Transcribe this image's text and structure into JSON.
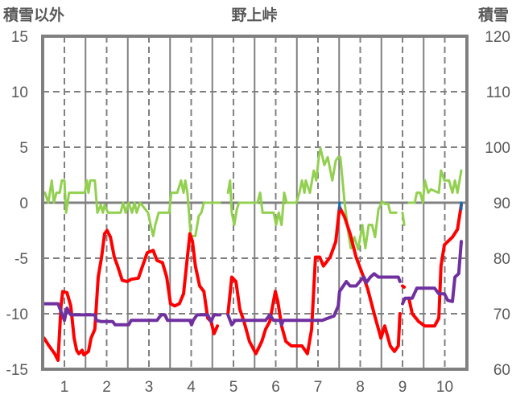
{
  "chart_data": {
    "type": "line",
    "title": "野上峠",
    "ylabel_left": "積雪以外",
    "ylabel_right": "積雪",
    "ylim_left": [
      -15,
      15
    ],
    "ylim_right": [
      60,
      120
    ],
    "xlim": [
      0.49,
      10.52
    ],
    "left_ticks": [
      "15",
      "10",
      "5",
      "0",
      "-5",
      "-10",
      "-15"
    ],
    "left_tick_values": [
      15,
      10,
      5,
      0,
      -5,
      -10,
      -15
    ],
    "right_ticks": [
      "120",
      "110",
      "100",
      "90",
      "80",
      "70",
      "60"
    ],
    "right_tick_values": [
      120,
      110,
      100,
      90,
      80,
      70,
      60
    ],
    "x_ticks": [
      "1",
      "2",
      "3",
      "4",
      "5",
      "6",
      "7",
      "8",
      "9",
      "10"
    ],
    "x_tick_values": [
      1,
      2,
      3,
      4,
      5,
      6,
      7,
      8,
      9,
      10
    ],
    "grid": true,
    "colors": {
      "red": "#ff0000",
      "green": "#92d050",
      "purple": "#7030a0",
      "blue": "#0070c0",
      "grid": "#808080",
      "text": "#595959"
    },
    "series": [
      {
        "name": "green",
        "axis": "left",
        "color": "#92d050",
        "width": 3,
        "points": [
          [
            0.54,
            0.9
          ],
          [
            0.62,
            0
          ],
          [
            0.7,
            2.0
          ],
          [
            0.75,
            0
          ],
          [
            0.81,
            0.9
          ],
          [
            0.89,
            0.9
          ],
          [
            0.94,
            2.0
          ],
          [
            1.0,
            2.0
          ],
          [
            1.04,
            -0.9
          ],
          [
            1.11,
            0.9
          ],
          [
            1.48,
            0.9
          ],
          [
            1.53,
            2.0
          ],
          [
            1.57,
            0.9
          ],
          [
            1.61,
            2.0
          ],
          [
            1.72,
            2.0
          ],
          [
            1.78,
            -0.9
          ],
          [
            1.86,
            -0.2
          ],
          [
            1.91,
            -0.9
          ],
          [
            1.95,
            -0.2
          ],
          [
            2.03,
            -0.9
          ],
          [
            2.33,
            -0.9
          ],
          [
            2.39,
            0
          ],
          [
            2.45,
            -0.9
          ],
          [
            2.52,
            0
          ],
          [
            2.6,
            -0.9
          ],
          [
            2.66,
            0
          ],
          [
            2.71,
            -0.9
          ],
          [
            2.79,
            0
          ],
          [
            2.98,
            -0.9
          ],
          [
            3.04,
            -2.0
          ],
          [
            3.1,
            -3.0
          ],
          [
            3.15,
            -2.0
          ],
          [
            3.23,
            -0.9
          ],
          [
            3.48,
            -0.9
          ],
          [
            3.53,
            0.9
          ],
          [
            3.67,
            0.9
          ],
          [
            3.76,
            2.0
          ],
          [
            3.82,
            0.9
          ],
          [
            3.86,
            2.0
          ],
          [
            3.91,
            0.9
          ],
          [
            3.99,
            -3.0
          ],
          [
            4.1,
            -3.0
          ],
          [
            4.18,
            -1.2
          ],
          [
            4.24,
            -0.9
          ],
          [
            4.3,
            0
          ],
          [
            4.68,
            0
          ],
          null,
          [
            4.87,
            0.9
          ],
          [
            4.92,
            2.0
          ],
          [
            4.96,
            -0.9
          ],
          [
            5.02,
            -2.0
          ],
          [
            5.08,
            -0.6
          ],
          [
            5.13,
            0
          ],
          [
            5.57,
            0
          ],
          [
            5.63,
            0.9
          ],
          [
            5.69,
            -0.9
          ],
          [
            5.95,
            -0.9
          ],
          [
            6.01,
            -2.0
          ],
          [
            6.07,
            -0.9
          ],
          [
            6.14,
            -2.0
          ],
          [
            6.2,
            0.9
          ],
          [
            6.26,
            0
          ],
          [
            6.49,
            0
          ],
          [
            6.56,
            0.9
          ],
          [
            6.62,
            2.0
          ],
          [
            6.68,
            0.9
          ],
          [
            6.71,
            2.0
          ],
          [
            6.81,
            0.9
          ],
          [
            6.9,
            2.9
          ],
          [
            6.96,
            2.0
          ],
          [
            7.02,
            4.1
          ],
          [
            7.06,
            4.9
          ],
          [
            7.15,
            3.4
          ],
          [
            7.23,
            4.1
          ],
          [
            7.34,
            2.0
          ],
          [
            7.42,
            3.8
          ],
          [
            7.48,
            4.1
          ],
          [
            7.53,
            4.1
          ],
          [
            7.63,
            0
          ],
          [
            7.72,
            -2.8
          ],
          [
            7.78,
            -4.1
          ],
          [
            7.86,
            -3.1
          ],
          [
            7.95,
            -4.2
          ],
          [
            8.05,
            -2.0
          ],
          [
            8.12,
            -4.1
          ],
          [
            8.2,
            -2.0
          ],
          [
            8.28,
            -2.0
          ],
          [
            8.35,
            -3.1
          ],
          [
            8.43,
            -0.6
          ],
          [
            8.52,
            0.1
          ],
          [
            8.58,
            -0.1
          ],
          [
            8.66,
            -0.1
          ],
          [
            8.71,
            -0.9
          ],
          [
            8.85,
            -0.9
          ],
          null,
          [
            9.0,
            -0.9
          ],
          [
            9.04,
            -2.0
          ],
          null,
          [
            9.15,
            0
          ],
          [
            9.29,
            0
          ],
          [
            9.34,
            0.9
          ],
          [
            9.42,
            0.9
          ],
          [
            9.48,
            0
          ],
          [
            9.53,
            2.0
          ],
          [
            9.61,
            0.9
          ],
          [
            9.67,
            1.2
          ],
          [
            9.86,
            0.9
          ],
          [
            9.91,
            2.9
          ],
          [
            9.99,
            2.0
          ],
          [
            10.1,
            2.0
          ],
          [
            10.18,
            0.9
          ],
          [
            10.24,
            2.0
          ],
          [
            10.3,
            0.9
          ],
          [
            10.39,
            2.9
          ]
        ]
      },
      {
        "name": "red",
        "axis": "left",
        "color": "#ff0000",
        "width": 4,
        "points": [
          [
            0.52,
            -12.2
          ],
          [
            0.62,
            -12.8
          ],
          [
            0.77,
            -13.6
          ],
          [
            0.85,
            -14.2
          ],
          [
            0.92,
            -9.3
          ],
          [
            0.96,
            -8.0
          ],
          [
            1.06,
            -8.1
          ],
          [
            1.15,
            -9.3
          ],
          [
            1.23,
            -12.2
          ],
          [
            1.29,
            -13.3
          ],
          [
            1.34,
            -13.6
          ],
          [
            1.42,
            -13.3
          ],
          [
            1.46,
            -13.7
          ],
          [
            1.57,
            -13.4
          ],
          [
            1.63,
            -12.2
          ],
          [
            1.72,
            -11.4
          ],
          [
            1.8,
            -6.7
          ],
          [
            1.88,
            -4.9
          ],
          [
            1.95,
            -2.8
          ],
          [
            2.01,
            -2.5
          ],
          [
            2.09,
            -3.1
          ],
          [
            2.18,
            -4.9
          ],
          [
            2.26,
            -5.7
          ],
          [
            2.37,
            -7.0
          ],
          [
            2.49,
            -7.1
          ],
          [
            2.58,
            -6.9
          ],
          [
            2.75,
            -6.8
          ],
          [
            2.85,
            -5.7
          ],
          [
            2.96,
            -4.5
          ],
          [
            3.1,
            -4.3
          ],
          [
            3.19,
            -5.2
          ],
          [
            3.32,
            -5.4
          ],
          [
            3.42,
            -6.7
          ],
          [
            3.51,
            -9.1
          ],
          [
            3.61,
            -9.3
          ],
          [
            3.72,
            -9.1
          ],
          [
            3.82,
            -8.2
          ],
          [
            3.91,
            -4.9
          ],
          [
            3.97,
            -2.8
          ],
          [
            4.03,
            -3.5
          ],
          [
            4.1,
            -5.7
          ],
          [
            4.2,
            -7.5
          ],
          [
            4.3,
            -8.0
          ],
          [
            4.39,
            -10.4
          ],
          [
            4.47,
            -10.7
          ],
          [
            4.54,
            -11.8
          ],
          [
            4.62,
            -11.1
          ],
          null,
          [
            4.87,
            -10.0
          ],
          [
            4.96,
            -6.7
          ],
          [
            5.06,
            -7.1
          ],
          [
            5.15,
            -9.6
          ],
          [
            5.25,
            -10.7
          ],
          [
            5.38,
            -12.5
          ],
          [
            5.53,
            -13.6
          ],
          [
            5.67,
            -12.5
          ],
          [
            5.76,
            -11.4
          ],
          [
            5.86,
            -10.7
          ],
          [
            5.99,
            -8.0
          ],
          [
            6.05,
            -8.9
          ],
          [
            6.14,
            -11.1
          ],
          [
            6.24,
            -12.5
          ],
          [
            6.37,
            -12.9
          ],
          [
            6.62,
            -12.9
          ],
          [
            6.75,
            -13.6
          ],
          [
            6.85,
            -11.4
          ],
          [
            6.94,
            -4.9
          ],
          [
            7.04,
            -4.9
          ],
          [
            7.13,
            -5.7
          ],
          [
            7.29,
            -4.9
          ],
          [
            7.42,
            -3.5
          ],
          [
            7.51,
            -0.4
          ],
          [
            7.63,
            -1.3
          ],
          [
            7.76,
            -2.8
          ],
          [
            7.9,
            -4.9
          ],
          [
            8.05,
            -6.4
          ],
          [
            8.18,
            -7.8
          ],
          [
            8.33,
            -10.0
          ],
          [
            8.49,
            -12.2
          ],
          [
            8.58,
            -11.1
          ],
          [
            8.71,
            -12.9
          ],
          [
            8.81,
            -13.4
          ],
          [
            8.9,
            -12.9
          ],
          [
            8.94,
            -10.0
          ],
          null,
          [
            9.0,
            -7.5
          ],
          [
            9.04,
            -7.6
          ],
          null,
          [
            9.15,
            -8.6
          ],
          [
            9.23,
            -10.0
          ],
          [
            9.38,
            -10.7
          ],
          [
            9.53,
            -11.1
          ],
          [
            9.76,
            -11.1
          ],
          [
            9.86,
            -10.4
          ],
          [
            9.91,
            -5.7
          ],
          [
            9.99,
            -3.8
          ],
          [
            10.07,
            -3.5
          ],
          [
            10.18,
            -3.1
          ],
          [
            10.3,
            -2.4
          ],
          [
            10.39,
            -0.2
          ]
        ]
      },
      {
        "name": "purple",
        "axis": "right",
        "color": "#7030a0",
        "width": 4,
        "points": [
          [
            0.49,
            71.8
          ],
          [
            0.85,
            71.8
          ],
          [
            1.0,
            68.8
          ],
          [
            1.06,
            71.0
          ],
          [
            1.15,
            69.8
          ],
          [
            1.72,
            69.8
          ],
          [
            1.76,
            68.8
          ],
          [
            1.86,
            68.6
          ],
          [
            2.14,
            68.6
          ],
          [
            2.2,
            68.0
          ],
          [
            2.28,
            68.0
          ],
          [
            2.52,
            68.0
          ],
          [
            2.58,
            68.8
          ],
          [
            3.19,
            68.8
          ],
          [
            3.29,
            69.8
          ],
          [
            3.38,
            69.8
          ],
          [
            3.44,
            68.8
          ],
          [
            3.97,
            68.8
          ],
          [
            4.01,
            68.0
          ],
          [
            4.05,
            68.8
          ],
          [
            4.14,
            69.8
          ],
          [
            4.39,
            69.8
          ],
          [
            4.47,
            68.6
          ],
          [
            4.54,
            69.8
          ],
          [
            4.68,
            69.8
          ],
          null,
          [
            4.87,
            69.8
          ],
          [
            4.96,
            68.0
          ],
          [
            5.04,
            68.8
          ],
          [
            5.76,
            68.8
          ],
          [
            5.86,
            69.8
          ],
          [
            5.95,
            68.8
          ],
          [
            6.1,
            68.8
          ],
          [
            6.14,
            68.0
          ],
          [
            6.18,
            68.8
          ],
          [
            7.1,
            68.8
          ],
          [
            7.38,
            69.6
          ],
          [
            7.48,
            71.4
          ],
          [
            7.51,
            74.0
          ],
          [
            7.67,
            75.8
          ],
          [
            7.76,
            75.0
          ],
          [
            7.9,
            75.0
          ],
          [
            8.01,
            76.0
          ],
          [
            8.09,
            76.6
          ],
          [
            8.14,
            75.6
          ],
          [
            8.24,
            76.6
          ],
          [
            8.33,
            77.2
          ],
          [
            8.43,
            76.6
          ],
          [
            8.9,
            76.6
          ],
          [
            8.94,
            75.8
          ],
          null,
          [
            9.0,
            71.8
          ],
          [
            9.06,
            72.8
          ],
          [
            9.23,
            72.8
          ],
          [
            9.34,
            74.6
          ],
          [
            9.76,
            74.6
          ],
          [
            9.86,
            73.6
          ],
          [
            9.99,
            73.6
          ],
          [
            10.07,
            72.4
          ],
          [
            10.18,
            72.2
          ],
          [
            10.24,
            76.6
          ],
          [
            10.33,
            77.2
          ],
          [
            10.39,
            83.0
          ]
        ]
      },
      {
        "name": "blue",
        "axis": "left",
        "color": "#0070c0",
        "width": 3,
        "points": [
          [
            7.51,
            0
          ],
          [
            7.51,
            -0.6
          ],
          null,
          [
            10.39,
            0
          ],
          [
            10.39,
            -0.6
          ]
        ]
      }
    ]
  }
}
